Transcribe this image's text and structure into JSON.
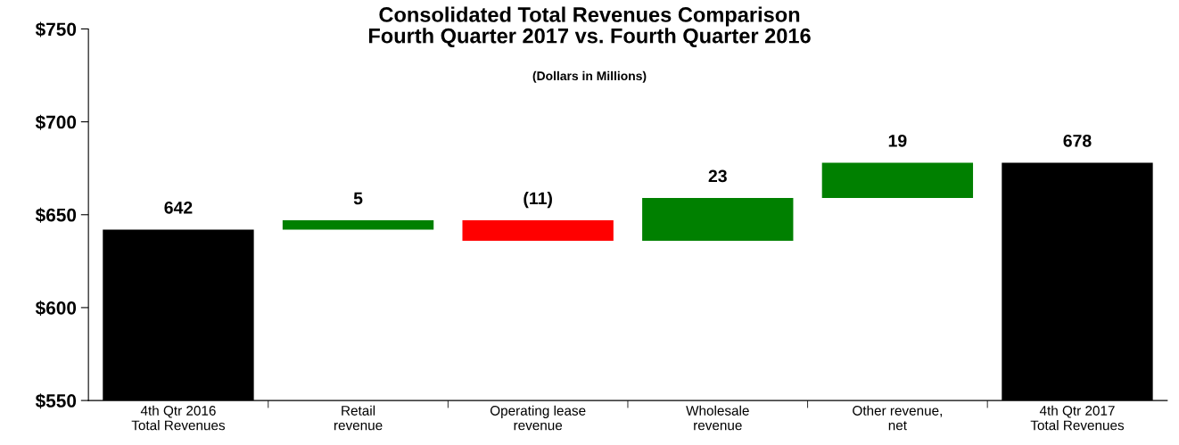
{
  "chart_data": {
    "type": "bar",
    "title": "Consolidated Total Revenues Comparison\nFourth Quarter 2017 vs. Fourth Quarter 2016",
    "subtitle": "(Dollars in Millions)",
    "categories": [
      "4th Qtr 2016\nTotal Revenues",
      "Retail\nrevenue",
      "Operating lease\nrevenue",
      "Wholesale\nrevenue",
      "Other revenue,\nnet",
      "4th Qtr 2017\nTotal Revenues"
    ],
    "base": [
      550,
      642,
      647,
      636,
      659,
      550
    ],
    "values": [
      92,
      5,
      -11,
      23,
      19,
      128
    ],
    "colors": [
      "#000000",
      "#008000",
      "#ff0000",
      "#008000",
      "#008000",
      "#000000"
    ],
    "value_labels": [
      "642",
      "5",
      "(11)",
      "23",
      "19",
      "678"
    ],
    "ylim": [
      550,
      750
    ],
    "yticks": [
      {
        "value": 550,
        "label": "$550"
      },
      {
        "value": 600,
        "label": "$600"
      },
      {
        "value": 650,
        "label": "$650"
      },
      {
        "value": 700,
        "label": "$700"
      },
      {
        "value": 750,
        "label": "$750"
      }
    ],
    "grid": false,
    "legend": false
  }
}
